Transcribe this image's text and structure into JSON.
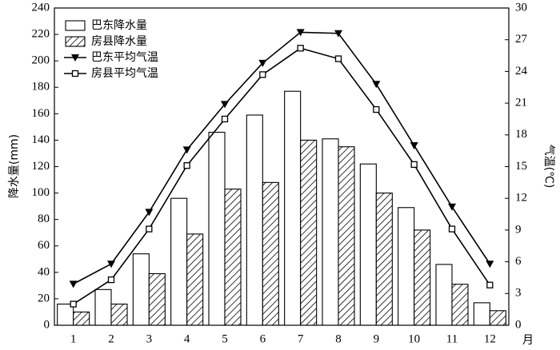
{
  "chart_data": {
    "type": "bar_line",
    "x_label": "月",
    "y_label": "降水量(mm)",
    "y2_label": "气温(℃)",
    "categories": [
      "1",
      "2",
      "3",
      "4",
      "5",
      "6",
      "7",
      "8",
      "9",
      "10",
      "11",
      "12"
    ],
    "series": [
      {
        "name": "巴东降水量",
        "kind": "bar",
        "color": "#ffffff",
        "pattern": "none",
        "axis": "y",
        "values": [
          16,
          27,
          54,
          96,
          146,
          159,
          177,
          141,
          122,
          89,
          46,
          17
        ]
      },
      {
        "name": "房县降水量",
        "kind": "bar",
        "color": "#ffffff",
        "pattern": "hatch",
        "axis": "y",
        "values": [
          10,
          16,
          39,
          69,
          103,
          108,
          140,
          135,
          100,
          72,
          31,
          11
        ]
      },
      {
        "name": "巴东平均气温",
        "kind": "line",
        "color": "#000000",
        "marker": "triangle-down",
        "axis": "y2",
        "values": [
          3.9,
          5.8,
          10.7,
          16.6,
          20.9,
          24.8,
          27.7,
          27.6,
          22.8,
          17.0,
          11.2,
          5.8
        ]
      },
      {
        "name": "房县平均气温",
        "kind": "line",
        "color": "#000000",
        "marker": "square",
        "axis": "y2",
        "values": [
          2.0,
          4.3,
          9.1,
          15.1,
          19.5,
          23.7,
          26.2,
          25.2,
          20.4,
          15.2,
          9.1,
          3.8
        ]
      }
    ],
    "ylim": [
      0,
      240
    ],
    "yticks": [
      0,
      20,
      40,
      60,
      80,
      100,
      120,
      140,
      160,
      180,
      200,
      220,
      240
    ],
    "y2lim": [
      0,
      30
    ],
    "y2ticks": [
      0,
      3,
      6,
      9,
      12,
      15,
      18,
      21,
      24,
      27,
      30
    ],
    "legend": "upper-left",
    "grid": false
  }
}
